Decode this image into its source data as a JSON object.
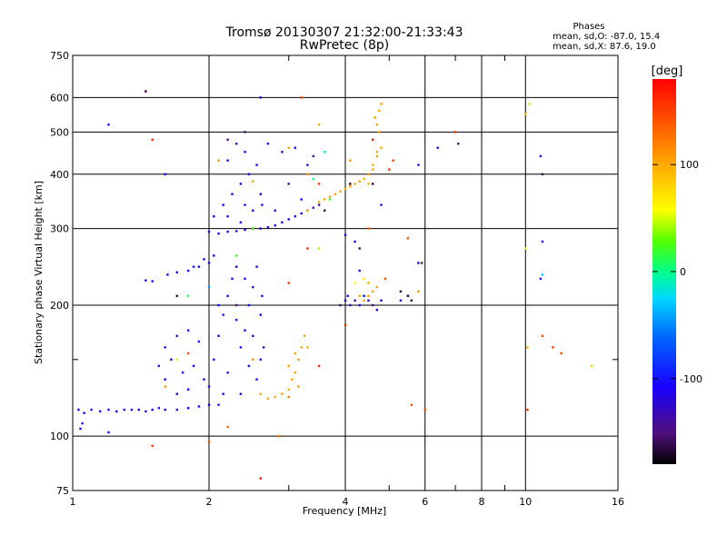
{
  "chart_data": {
    "type": "scatter",
    "title": "Tromsø 20130307 21:32:00-21:33:43",
    "subtitle": "RwPretec (8p)",
    "xlabel": "Frequency [MHz]",
    "ylabel": "Stationary phase Virtual Height [km]",
    "x_scale": "log",
    "y_scale": "log",
    "xlim": [
      1,
      16
    ],
    "ylim": [
      75,
      750
    ],
    "x_ticks": [
      1,
      2,
      4,
      6,
      8,
      10,
      16
    ],
    "x_minor_ticks": [
      3,
      5,
      7,
      9
    ],
    "y_ticks": [
      75,
      100,
      200,
      300,
      400,
      500,
      600,
      750
    ],
    "y_minor_ticks": [
      150
    ],
    "grid": true,
    "stats": {
      "header": "Phases",
      "line1": "mean, sd,O: -87.0, 15.4",
      "line2": "mean, sd,X:  87.6, 19.0"
    },
    "colorbar": {
      "label": "[deg]",
      "range": [
        -180,
        180
      ],
      "ticks": [
        100,
        0,
        -100
      ],
      "colormap": "rainbow (black-purple-blue-cyan-green-yellow-orange-red)"
    },
    "series": [
      {
        "points": [
          [
            1.03,
            115,
            -110
          ],
          [
            1.06,
            113,
            -105
          ],
          [
            1.1,
            115,
            -110
          ],
          [
            1.15,
            114,
            -115
          ],
          [
            1.2,
            115,
            -110
          ],
          [
            1.25,
            114,
            -105
          ],
          [
            1.3,
            115,
            -110
          ],
          [
            1.35,
            115,
            -100
          ],
          [
            1.4,
            115,
            -110
          ],
          [
            1.45,
            114,
            -105
          ],
          [
            1.5,
            115,
            -110
          ],
          [
            1.55,
            116,
            -100
          ],
          [
            1.6,
            115,
            -110
          ],
          [
            1.7,
            115,
            -105
          ],
          [
            1.8,
            116,
            -110
          ],
          [
            1.9,
            117,
            -105
          ],
          [
            2.0,
            118,
            -110
          ],
          [
            2.1,
            118,
            -100
          ],
          [
            1.04,
            104,
            -110
          ],
          [
            1.05,
            107,
            -100
          ],
          [
            1.2,
            102,
            -110
          ],
          [
            1.6,
            160,
            -100
          ],
          [
            1.65,
            150,
            -110
          ],
          [
            1.7,
            170,
            -100
          ],
          [
            1.75,
            140,
            -110
          ],
          [
            1.8,
            175,
            -105
          ],
          [
            1.85,
            145,
            -100
          ],
          [
            1.9,
            165,
            -110
          ],
          [
            1.95,
            135,
            -105
          ],
          [
            1.6,
            135,
            -110
          ],
          [
            1.55,
            145,
            -100
          ],
          [
            1.7,
            125,
            -110
          ],
          [
            1.8,
            128,
            -105
          ],
          [
            2.0,
            130,
            -110
          ],
          [
            2.05,
            150,
            -105
          ],
          [
            2.1,
            170,
            -110
          ],
          [
            2.15,
            190,
            -100
          ],
          [
            2.2,
            210,
            -110
          ],
          [
            2.25,
            230,
            -105
          ],
          [
            2.3,
            245,
            -110
          ],
          [
            2.35,
            160,
            -100
          ],
          [
            2.4,
            175,
            -110
          ],
          [
            2.45,
            200,
            -105
          ],
          [
            2.5,
            220,
            -110
          ],
          [
            2.55,
            245,
            -105
          ],
          [
            2.6,
            190,
            -110
          ],
          [
            2.6,
            150,
            -100
          ],
          [
            2.55,
            135,
            -110
          ],
          [
            2.45,
            145,
            -105
          ],
          [
            2.35,
            125,
            -110
          ],
          [
            2.2,
            140,
            -100
          ],
          [
            2.15,
            125,
            -110
          ],
          [
            2.3,
            185,
            -105
          ],
          [
            2.5,
            170,
            -110
          ],
          [
            2.62,
            210,
            -105
          ],
          [
            2.64,
            160,
            -110
          ],
          [
            2.4,
            230,
            -110
          ],
          [
            2.1,
            200,
            -105
          ],
          [
            1.62,
            235,
            -110
          ],
          [
            1.7,
            238,
            -105
          ],
          [
            1.8,
            240,
            -110
          ],
          [
            1.9,
            245,
            -100
          ],
          [
            2.0,
            250,
            -110
          ],
          [
            2.05,
            260,
            -105
          ],
          [
            1.95,
            255,
            -110
          ],
          [
            1.85,
            245,
            -100
          ],
          [
            1.45,
            228,
            -110
          ],
          [
            1.5,
            227,
            -105
          ],
          [
            2.0,
            295,
            -110
          ],
          [
            2.1,
            292,
            -105
          ],
          [
            2.2,
            295,
            -110
          ],
          [
            2.3,
            296,
            -100
          ],
          [
            2.4,
            298,
            -110
          ],
          [
            2.5,
            300,
            -105
          ],
          [
            2.6,
            300,
            -110
          ],
          [
            2.7,
            302,
            -100
          ],
          [
            2.8,
            305,
            -110
          ],
          [
            2.9,
            310,
            -105
          ],
          [
            3.0,
            315,
            -110
          ],
          [
            3.1,
            320,
            -100
          ],
          [
            3.2,
            325,
            -110
          ],
          [
            3.3,
            330,
            -105
          ],
          [
            3.4,
            335,
            -140
          ],
          [
            3.5,
            340,
            -130
          ],
          [
            2.05,
            320,
            -110
          ],
          [
            2.15,
            340,
            -105
          ],
          [
            2.25,
            360,
            -110
          ],
          [
            2.35,
            380,
            -100
          ],
          [
            2.45,
            400,
            -110
          ],
          [
            2.55,
            420,
            -105
          ],
          [
            2.4,
            450,
            -110
          ],
          [
            2.3,
            470,
            -100
          ],
          [
            2.6,
            360,
            -110
          ],
          [
            2.2,
            430,
            -105
          ],
          [
            2.5,
            330,
            -110
          ],
          [
            2.62,
            340,
            -100
          ],
          [
            2.2,
            320,
            -110
          ],
          [
            2.4,
            340,
            -105
          ],
          [
            2.35,
            310,
            -110
          ],
          [
            2.7,
            470,
            -105
          ],
          [
            2.9,
            450,
            -110
          ],
          [
            3.1,
            460,
            -100
          ],
          [
            3.3,
            420,
            -130
          ],
          [
            3.0,
            380,
            -140
          ],
          [
            3.2,
            350,
            -110
          ],
          [
            2.8,
            330,
            -105
          ],
          [
            4.0,
            205,
            -110
          ],
          [
            4.05,
            210,
            -105
          ],
          [
            4.1,
            200,
            -140
          ],
          [
            4.2,
            205,
            -130
          ],
          [
            4.3,
            200,
            -120
          ],
          [
            4.4,
            210,
            -110
          ],
          [
            4.5,
            205,
            -130
          ],
          [
            4.6,
            200,
            -140
          ],
          [
            4.7,
            195,
            -120
          ],
          [
            4.8,
            205,
            -110
          ],
          [
            5.3,
            205,
            -130
          ],
          [
            5.5,
            210,
            -110
          ],
          [
            4.2,
            280,
            -110
          ],
          [
            4.0,
            290,
            -100
          ],
          [
            1.2,
            520,
            -110
          ],
          [
            1.45,
            620,
            -140
          ],
          [
            1.6,
            400,
            -110
          ],
          [
            2.6,
            600,
            -105
          ],
          [
            4.8,
            340,
            -110
          ],
          [
            4.3,
            240,
            -110
          ],
          [
            5.8,
            250,
            -110
          ],
          [
            10.8,
            440,
            -105
          ],
          [
            10.8,
            230,
            -110
          ],
          [
            10.9,
            280,
            -100
          ],
          [
            6.4,
            460,
            -110
          ],
          [
            5.8,
            420,
            -105
          ]
        ]
      },
      {
        "points": [
          [
            2.6,
            125,
            100
          ],
          [
            2.7,
            122,
            105
          ],
          [
            2.8,
            123,
            100
          ],
          [
            2.9,
            125,
            105
          ],
          [
            3.0,
            128,
            100
          ],
          [
            3.05,
            135,
            105
          ],
          [
            3.1,
            140,
            100
          ],
          [
            3.15,
            150,
            105
          ],
          [
            3.2,
            160,
            100
          ],
          [
            3.25,
            170,
            105
          ],
          [
            3.1,
            155,
            100
          ],
          [
            3.0,
            145,
            105
          ],
          [
            3.3,
            160,
            100
          ],
          [
            3.15,
            130,
            105
          ],
          [
            3.3,
            330,
            100
          ],
          [
            3.5,
            345,
            105
          ],
          [
            3.6,
            350,
            100
          ],
          [
            3.7,
            355,
            105
          ],
          [
            3.8,
            360,
            100
          ],
          [
            3.9,
            365,
            105
          ],
          [
            4.0,
            370,
            100
          ],
          [
            4.1,
            375,
            105
          ],
          [
            4.2,
            380,
            100
          ],
          [
            4.3,
            385,
            105
          ],
          [
            4.4,
            390,
            100
          ],
          [
            4.5,
            400,
            105
          ],
          [
            4.6,
            420,
            100
          ],
          [
            4.7,
            440,
            105
          ],
          [
            4.8,
            460,
            100
          ],
          [
            4.75,
            500,
            105
          ],
          [
            4.7,
            520,
            100
          ],
          [
            4.65,
            540,
            105
          ],
          [
            4.75,
            560,
            100
          ],
          [
            4.6,
            410,
            100
          ],
          [
            4.7,
            450,
            105
          ],
          [
            4.5,
            380,
            100
          ],
          [
            4.8,
            580,
            105
          ],
          [
            4.4,
            205,
            100
          ],
          [
            4.5,
            210,
            105
          ],
          [
            4.6,
            215,
            100
          ],
          [
            4.7,
            220,
            105
          ],
          [
            4.5,
            225,
            100
          ],
          [
            4.3,
            210,
            105
          ],
          [
            1.6,
            130,
            110
          ],
          [
            2.5,
            150,
            110
          ],
          [
            3.0,
            123,
            120
          ],
          [
            2.2,
            105,
            130
          ],
          [
            2.85,
            100,
            125
          ],
          [
            5.8,
            215,
            110
          ],
          [
            3.3,
            400,
            105
          ],
          [
            2.5,
            385,
            100
          ],
          [
            2.1,
            430,
            110
          ],
          [
            3.0,
            460,
            105
          ],
          [
            3.5,
            520,
            100
          ],
          [
            4.1,
            430,
            110
          ]
        ]
      },
      {
        "points": [
          [
            1.5,
            480,
            160
          ],
          [
            3.0,
            225,
            150
          ],
          [
            3.5,
            380,
            160
          ],
          [
            3.2,
            600,
            150
          ],
          [
            4.0,
            180,
            160
          ],
          [
            5.0,
            410,
            160
          ],
          [
            5.1,
            430,
            150
          ],
          [
            4.5,
            300,
            140
          ],
          [
            10.9,
            170,
            150
          ],
          [
            11.5,
            160,
            160
          ],
          [
            10.1,
            115,
            160
          ],
          [
            6.0,
            115,
            150
          ],
          [
            12.0,
            155,
            150
          ],
          [
            5.6,
            118,
            140
          ],
          [
            2.6,
            80,
            170
          ],
          [
            1.5,
            95,
            150
          ],
          [
            2.0,
            97,
            140
          ],
          [
            3.5,
            145,
            160
          ],
          [
            4.9,
            230,
            140
          ],
          [
            4.6,
            480,
            170
          ],
          [
            1.8,
            155,
            140
          ],
          [
            7.0,
            500,
            150
          ],
          [
            3.3,
            270,
            160
          ],
          [
            5.5,
            285,
            150
          ]
        ]
      },
      {
        "points": [
          [
            10.0,
            550,
            90
          ],
          [
            10.2,
            580,
            80
          ],
          [
            10.0,
            270,
            60
          ],
          [
            10.1,
            160,
            90
          ],
          [
            14.0,
            145,
            80
          ],
          [
            2.3,
            260,
            20
          ],
          [
            2.5,
            300,
            30
          ],
          [
            3.5,
            270,
            40
          ],
          [
            1.8,
            210,
            10
          ],
          [
            4.2,
            225,
            60
          ],
          [
            3.4,
            390,
            0
          ],
          [
            3.6,
            450,
            -20
          ],
          [
            10.9,
            235,
            -30
          ],
          [
            2.0,
            220,
            -40
          ],
          [
            3.7,
            350,
            20
          ],
          [
            4.4,
            230,
            70
          ],
          [
            1.7,
            150,
            50
          ]
        ]
      },
      {
        "points": [
          [
            1.45,
            620,
            -150
          ],
          [
            2.2,
            480,
            -150
          ],
          [
            2.4,
            500,
            -160
          ],
          [
            3.4,
            440,
            -150
          ],
          [
            3.6,
            330,
            -160
          ],
          [
            4.1,
            380,
            -170
          ],
          [
            4.6,
            380,
            -160
          ],
          [
            5.5,
            210,
            -160
          ],
          [
            5.6,
            205,
            -165
          ],
          [
            4.3,
            270,
            -160
          ],
          [
            5.9,
            250,
            -150
          ],
          [
            1.7,
            210,
            -160
          ],
          [
            2.3,
            200,
            -150
          ],
          [
            3.9,
            200,
            -160
          ],
          [
            5.3,
            215,
            -165
          ],
          [
            7.1,
            470,
            -150
          ],
          [
            10.9,
            400,
            -160
          ]
        ]
      }
    ]
  }
}
